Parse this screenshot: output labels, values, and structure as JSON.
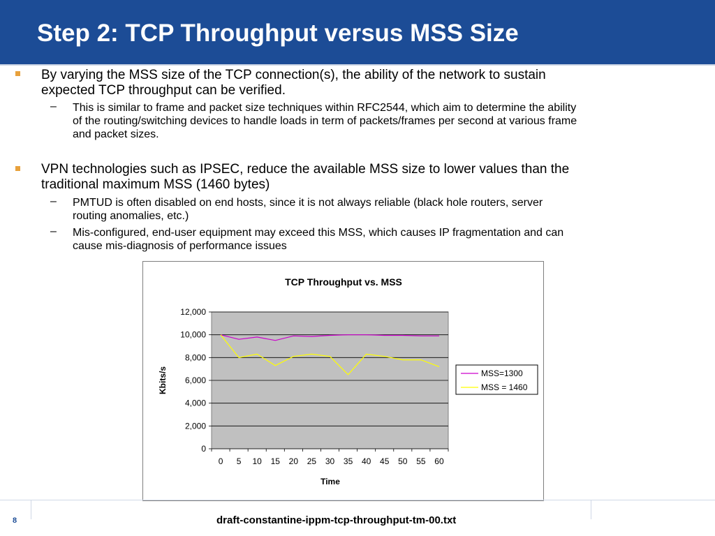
{
  "slide": {
    "title": "Step 2: TCP Throughput versus MSS Size",
    "page_number": "8",
    "footer": "draft-constantine-ippm-tcp-throughput-tm-00.txt"
  },
  "bullets": [
    {
      "text": "By varying the MSS size of the TCP connection(s), the ability of the network to sustain expected TCP throughput can be verified.",
      "line1": "By varying the MSS size of the TCP connection(s), the ability of the network to sustain",
      "line2": "expected TCP throughput can be verified.",
      "subs": [
        {
          "line1": "This is similar to frame and packet size techniques within RFC2544, which aim to determine the ability",
          "line2": "of the routing/switching devices to handle loads in term of packets/frames per second at various frame",
          "line3": "and packet sizes."
        }
      ]
    },
    {
      "line1": "VPN technologies such as IPSEC, reduce the available MSS size to lower values than the",
      "line2": "traditional maximum MSS (1460 bytes)",
      "subs": [
        {
          "line1": "PMTUD is often disabled on end hosts, since it is not always reliable (black hole routers, server",
          "line2": "routing anomalies, etc.)"
        },
        {
          "line1": "Mis-configured, end-user equipment may exceed this MSS, which causes IP fragmentation and can",
          "line2": "cause mis-diagnosis of performance issues"
        }
      ]
    }
  ],
  "chart_data": {
    "type": "line",
    "title": "TCP Throughput vs. MSS",
    "xlabel": "Time",
    "ylabel": "Kbits/s",
    "x": [
      0,
      5,
      10,
      15,
      20,
      25,
      30,
      35,
      40,
      45,
      50,
      55,
      60
    ],
    "ylim": [
      0,
      12000
    ],
    "yticks": [
      "0",
      "2,000",
      "4,000",
      "6,000",
      "8,000",
      "10,000",
      "12,000"
    ],
    "xticks": [
      "0",
      "5",
      "10",
      "15",
      "20",
      "25",
      "30",
      "35",
      "40",
      "45",
      "50",
      "55",
      "60"
    ],
    "grid": true,
    "legend_position": "right",
    "plot_background": "#c0c0c0",
    "series": [
      {
        "name": "MSS=1300",
        "color": "#cc00cc",
        "values": [
          10000,
          9600,
          9800,
          9500,
          9900,
          9850,
          9950,
          10000,
          10000,
          9950,
          9950,
          9900,
          9900
        ]
      },
      {
        "name": "MSS = 1460",
        "color": "#ffff00",
        "values": [
          10000,
          8000,
          8300,
          7300,
          8100,
          8300,
          8100,
          6500,
          8300,
          8100,
          7800,
          7800,
          7200
        ]
      }
    ]
  }
}
